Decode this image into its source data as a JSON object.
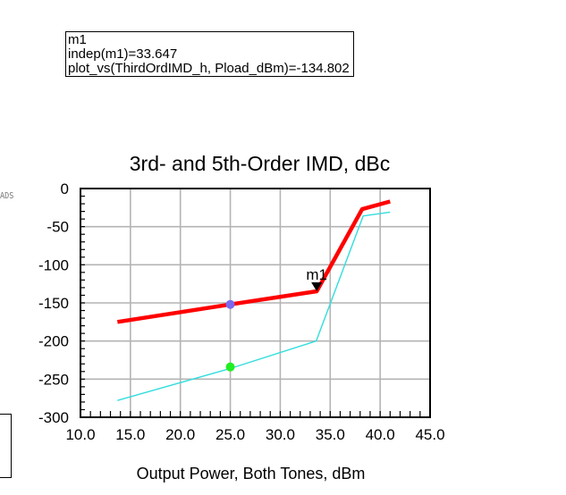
{
  "marker_readout": {
    "line1": "m1",
    "line2": "indep(m1)=33.647",
    "line3": "plot_vs(ThirdOrdIMD_h, Pload_dBm)=-134.802"
  },
  "ads_tag": "ADS",
  "chart_data": {
    "type": "line",
    "title": "3rd- and 5th-Order IMD, dBc",
    "xlabel": "Output Power, Both Tones, dBm",
    "ylabel": "",
    "xlim": [
      10,
      45
    ],
    "ylim": [
      -300,
      0
    ],
    "xticks": [
      10,
      15,
      20,
      25,
      30,
      35,
      40,
      45
    ],
    "yticks": [
      0,
      -50,
      -100,
      -150,
      -200,
      -250,
      -300
    ],
    "xtick_labels": [
      "10.0",
      "15.0",
      "20.0",
      "25.0",
      "30.0",
      "35.0",
      "40.0",
      "45.0"
    ],
    "ytick_labels": [
      "0",
      "-50",
      "-100",
      "-150",
      "-200",
      "-250",
      "-300"
    ],
    "grid": true,
    "series": [
      {
        "color": "#ff0000",
        "x": [
          13.7,
          25.0,
          33.647,
          38.2,
          41.0
        ],
        "y": [
          -175,
          -152,
          -134.802,
          -27,
          -17
        ]
      },
      {
        "color": "#33dddd",
        "x": [
          13.7,
          25.0,
          33.6,
          38.3,
          41.0
        ],
        "y": [
          -278,
          -236,
          -200,
          -36,
          -31
        ]
      }
    ],
    "points": [
      {
        "x": 25.0,
        "y": -152,
        "color": "#7b68ee"
      },
      {
        "x": 25.0,
        "y": -234,
        "color": "#22ee22"
      }
    ],
    "marker": {
      "label": "m1",
      "x": 33.647,
      "y": -134.802
    }
  }
}
